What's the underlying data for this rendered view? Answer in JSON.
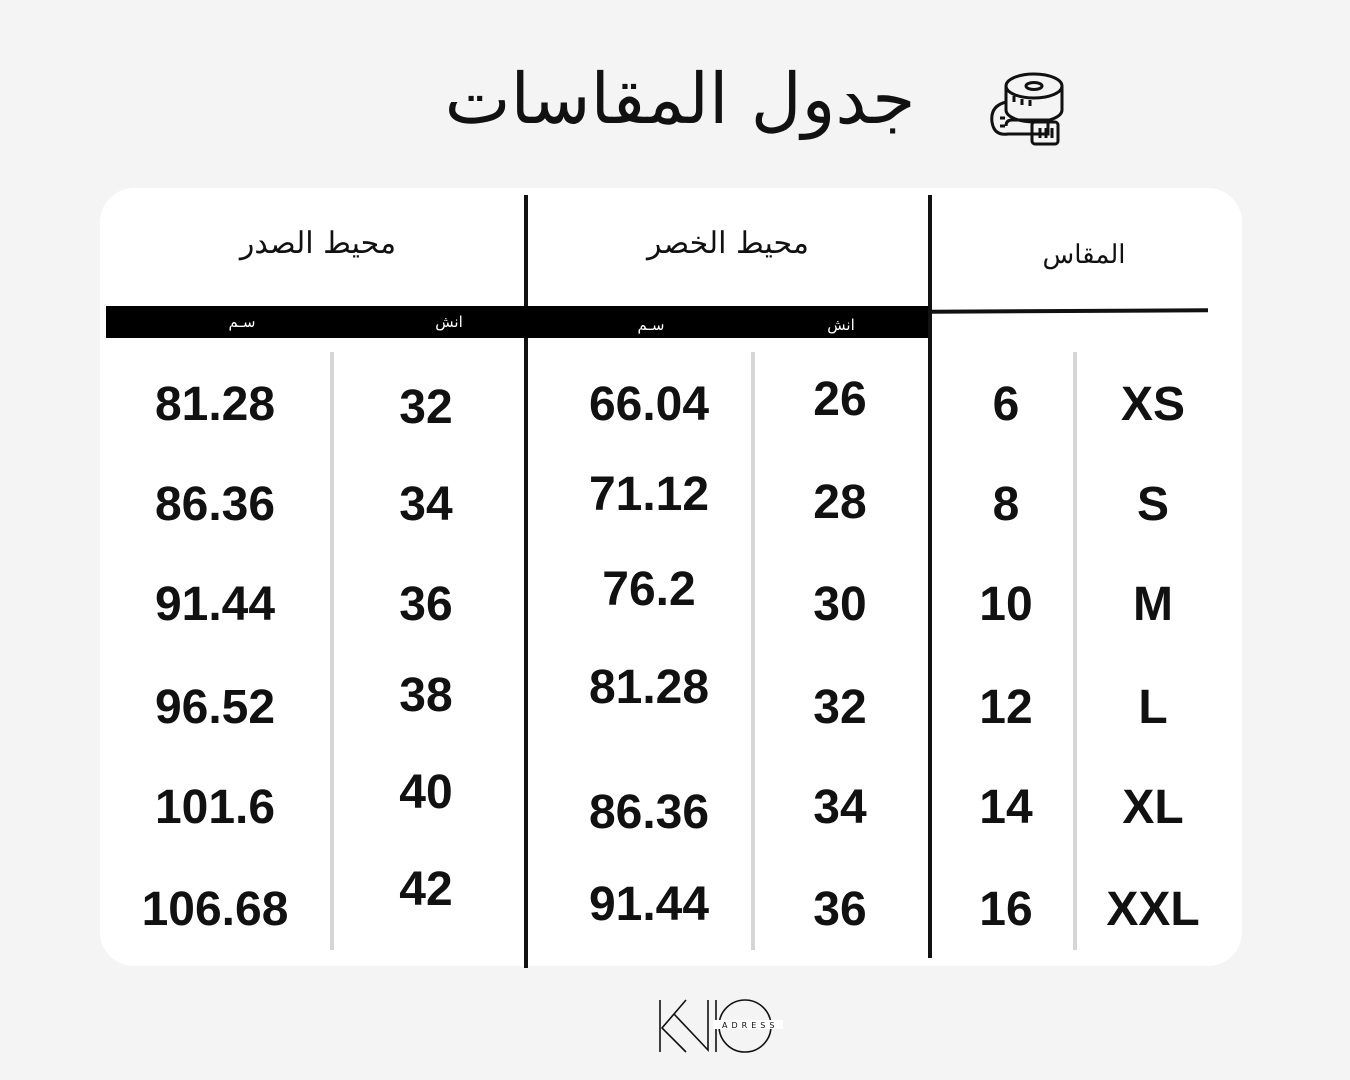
{
  "title": "جدول المقاسات",
  "title_icon": "tape-measure-icon",
  "headers": {
    "size": "المقاس",
    "waist": "محيط الخصر",
    "chest": "محيط الصدر",
    "inch": "انش",
    "cm": "سـم"
  },
  "rows": [
    {
      "size": "XS",
      "num": "6",
      "waist_in": "26",
      "waist_cm": "66.04",
      "chest_in": "32",
      "chest_cm": "81.28"
    },
    {
      "size": "S",
      "num": "8",
      "waist_in": "28",
      "waist_cm": "71.12",
      "chest_in": "34",
      "chest_cm": "86.36"
    },
    {
      "size": "M",
      "num": "10",
      "waist_in": "30",
      "waist_cm": "76.2",
      "chest_in": "36",
      "chest_cm": "91.44"
    },
    {
      "size": "L",
      "num": "12",
      "waist_in": "32",
      "waist_cm": "81.28",
      "chest_in": "38",
      "chest_cm": "96.52"
    },
    {
      "size": "XL",
      "num": "14",
      "waist_in": "34",
      "waist_cm": "86.36",
      "chest_in": "40",
      "chest_cm": "101.6"
    },
    {
      "size": "XXL",
      "num": "16",
      "waist_in": "36",
      "waist_cm": "91.44",
      "chest_in": "42",
      "chest_cm": "106.68"
    }
  ],
  "logo": {
    "main": "KNO",
    "sub": "ADRESS"
  }
}
